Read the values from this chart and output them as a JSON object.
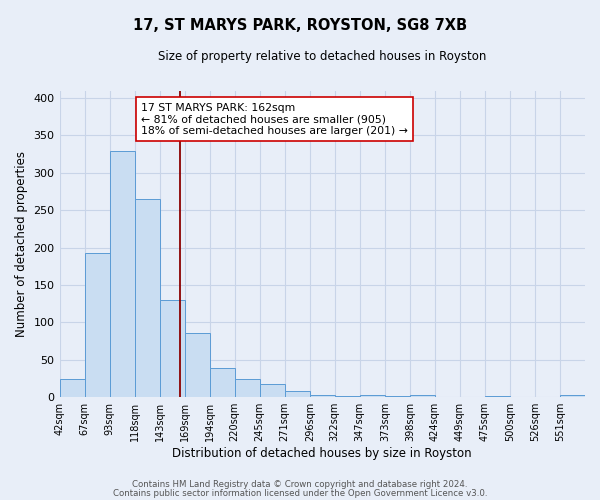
{
  "title": "17, ST MARYS PARK, ROYSTON, SG8 7XB",
  "subtitle": "Size of property relative to detached houses in Royston",
  "xlabel": "Distribution of detached houses by size in Royston",
  "ylabel": "Number of detached properties",
  "bar_labels": [
    "42sqm",
    "67sqm",
    "93sqm",
    "118sqm",
    "143sqm",
    "169sqm",
    "194sqm",
    "220sqm",
    "245sqm",
    "271sqm",
    "296sqm",
    "322sqm",
    "347sqm",
    "373sqm",
    "398sqm",
    "424sqm",
    "449sqm",
    "475sqm",
    "500sqm",
    "526sqm",
    "551sqm"
  ],
  "bar_values": [
    25,
    193,
    329,
    265,
    130,
    86,
    39,
    25,
    17,
    8,
    3,
    1,
    3,
    1,
    3,
    0,
    0,
    1,
    0,
    0,
    3
  ],
  "bin_width": 25,
  "bar_color": "#c9ddf2",
  "bar_edge_color": "#5b9bd5",
  "vline_x": 162,
  "vline_color": "#8b0000",
  "annotation_box_text": "17 ST MARYS PARK: 162sqm\n← 81% of detached houses are smaller (905)\n18% of semi-detached houses are larger (201) →",
  "ylim": [
    0,
    410
  ],
  "yticks": [
    0,
    50,
    100,
    150,
    200,
    250,
    300,
    350,
    400
  ],
  "grid_color": "#c8d4e8",
  "background_color": "#e8eef8",
  "footer1": "Contains HM Land Registry data © Crown copyright and database right 2024.",
  "footer2": "Contains public sector information licensed under the Open Government Licence v3.0."
}
